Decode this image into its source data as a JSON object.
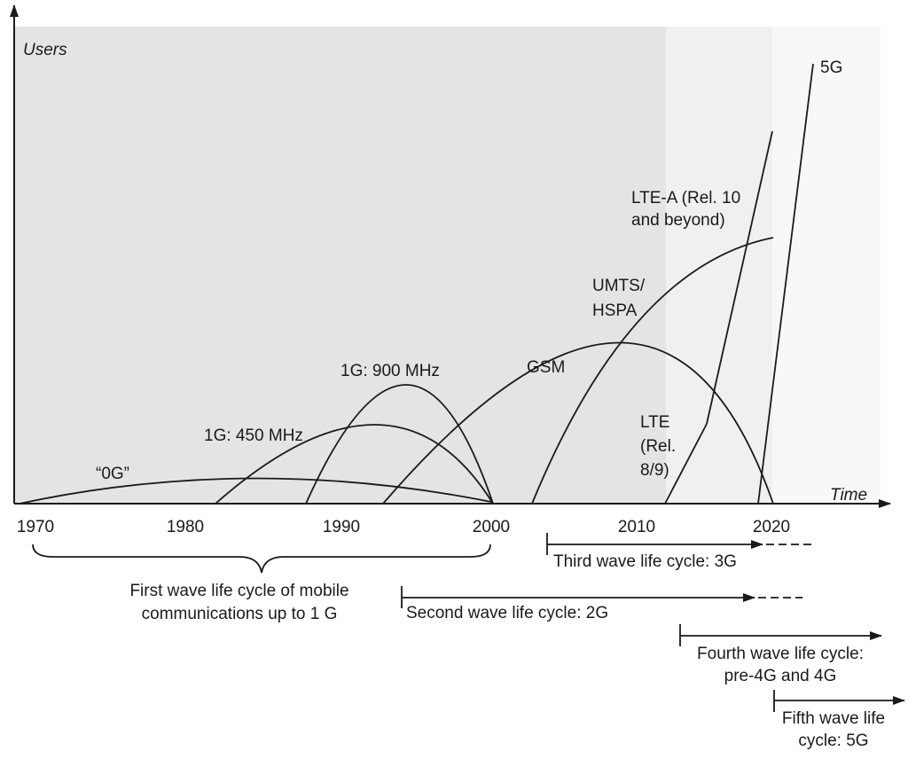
{
  "axis": {
    "y_title": "Users",
    "x_title": "Time",
    "ticks": [
      "1970",
      "1980",
      "1990",
      "2000",
      "2010",
      "2020"
    ]
  },
  "curves": {
    "zero_g": "“0G”",
    "g1_450": "1G: 450 MHz",
    "g1_900": "1G: 900 MHz",
    "gsm": "GSM",
    "umts_line1": "UMTS/",
    "umts_line2": "HSPA",
    "lte_a_line1": "LTE-A (Rel. 10",
    "lte_a_line2": "and beyond)",
    "lte_line1": "LTE",
    "lte_line2": "(Rel.",
    "lte_line3": "8/9)",
    "g5": "5G"
  },
  "waves": {
    "first_line1": "First wave life cycle of mobile",
    "first_line2": "communications up to 1 G",
    "second": "Second wave life cycle: 2G",
    "third": "Third wave life cycle: 3G",
    "fourth_line1": "Fourth wave life cycle:",
    "fourth_line2": "pre-4G and 4G",
    "fifth_line1": "Fifth wave life",
    "fifth_line2": "cycle: 5G"
  },
  "colors": {
    "shade_dark": "#e6e4e2",
    "shade_light": "#f1f0ef",
    "shade_lightest": "#f9f8f8",
    "ink": "#1a1a1a"
  }
}
